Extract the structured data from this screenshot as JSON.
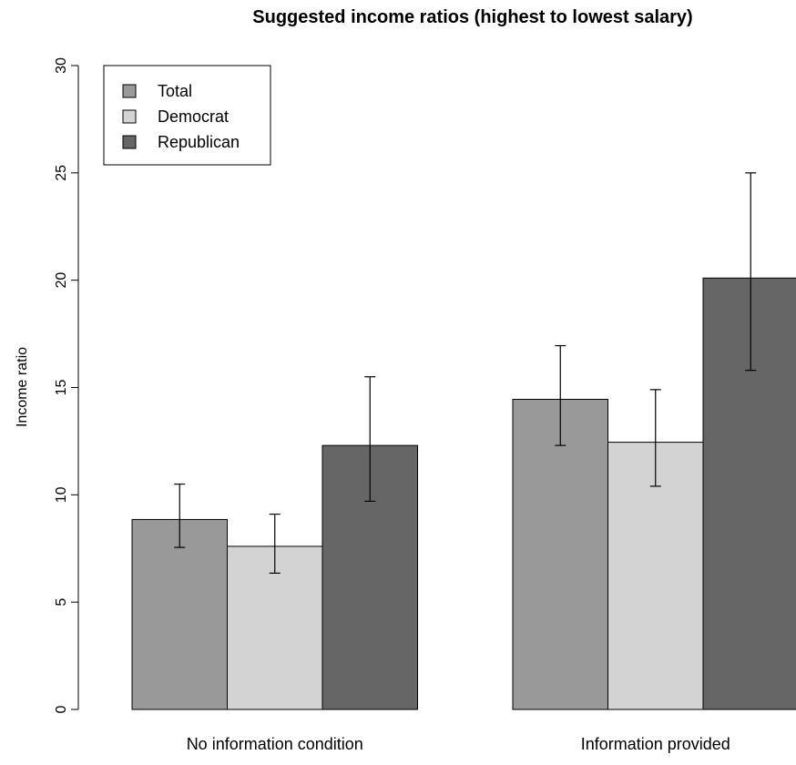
{
  "chart_data": {
    "type": "bar",
    "title": "Suggested income ratios (highest to lowest salary)",
    "xlabel": "",
    "ylabel": "Income ratio",
    "ylim": [
      0,
      30
    ],
    "yticks": [
      "0",
      "5",
      "10",
      "15",
      "20",
      "25",
      "30"
    ],
    "categories": [
      "No information condition",
      "Information provided"
    ],
    "series": [
      {
        "name": "Total",
        "color": "#999999",
        "values": [
          8.85,
          14.45
        ],
        "err_low": [
          7.55,
          12.3
        ],
        "err_high": [
          10.5,
          16.95
        ]
      },
      {
        "name": "Democrat",
        "color": "#d3d3d3",
        "values": [
          7.6,
          12.45
        ],
        "err_low": [
          6.35,
          10.4
        ],
        "err_high": [
          9.1,
          14.9
        ]
      },
      {
        "name": "Republican",
        "color": "#666666",
        "values": [
          12.3,
          20.1
        ],
        "err_low": [
          9.7,
          15.8
        ],
        "err_high": [
          15.5,
          25.0
        ]
      }
    ],
    "grid": false,
    "legend_position": "top-left"
  }
}
